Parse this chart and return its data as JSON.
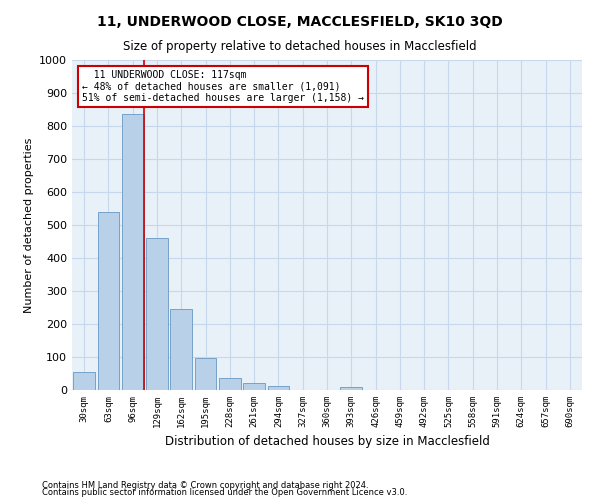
{
  "title": "11, UNDERWOOD CLOSE, MACCLESFIELD, SK10 3QD",
  "subtitle": "Size of property relative to detached houses in Macclesfield",
  "xlabel": "Distribution of detached houses by size in Macclesfield",
  "ylabel": "Number of detached properties",
  "bar_color": "#b8d0e8",
  "bar_edge_color": "#6899c4",
  "grid_color": "#c8d8ec",
  "background_color": "#e8f0f8",
  "annotation_box_color": "#ffffff",
  "annotation_box_edge": "#cc0000",
  "vline_color": "#cc0000",
  "categories": [
    "30sqm",
    "63sqm",
    "96sqm",
    "129sqm",
    "162sqm",
    "195sqm",
    "228sqm",
    "261sqm",
    "294sqm",
    "327sqm",
    "360sqm",
    "393sqm",
    "426sqm",
    "459sqm",
    "492sqm",
    "525sqm",
    "558sqm",
    "591sqm",
    "624sqm",
    "657sqm",
    "690sqm"
  ],
  "values": [
    55,
    538,
    835,
    462,
    245,
    97,
    37,
    20,
    12,
    0,
    0,
    8,
    0,
    0,
    0,
    0,
    0,
    0,
    0,
    0,
    0
  ],
  "ylim": [
    0,
    1000
  ],
  "yticks": [
    0,
    100,
    200,
    300,
    400,
    500,
    600,
    700,
    800,
    900,
    1000
  ],
  "property_label": "11 UNDERWOOD CLOSE: 117sqm",
  "pct_smaller": "48% of detached houses are smaller (1,091)",
  "pct_larger": "51% of semi-detached houses are larger (1,158)",
  "vline_bar_index": 2,
  "footnote1": "Contains HM Land Registry data © Crown copyright and database right 2024.",
  "footnote2": "Contains public sector information licensed under the Open Government Licence v3.0."
}
